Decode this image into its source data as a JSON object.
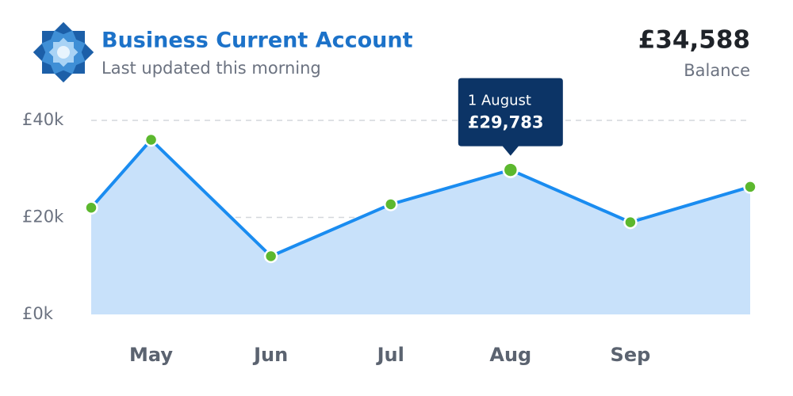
{
  "header": {
    "title": "Business Current Account",
    "subtitle": "Last updated this morning",
    "balance": "£34,588",
    "balance_label": "Balance"
  },
  "chart_data": {
    "type": "line",
    "categories": [
      null,
      "May",
      "Jun",
      "Jul",
      "Aug",
      "Sep",
      null
    ],
    "values": [
      22000,
      36000,
      12000,
      22700,
      29783,
      19000,
      26300
    ],
    "value_labels": [
      null,
      null,
      null,
      null,
      "£29,783",
      null,
      null
    ],
    "tooltip_date": "1 August",
    "color": "#1a8cf0",
    "area_color": "#c8e1fa",
    "point_color": "#5cb82e",
    "ylim": [
      0,
      40000
    ],
    "yticks": [
      {
        "value": 0,
        "label": "£0k"
      },
      {
        "value": 20000,
        "label": "£20k"
      },
      {
        "value": 40000,
        "label": "£40k"
      }
    ],
    "grid": true
  }
}
